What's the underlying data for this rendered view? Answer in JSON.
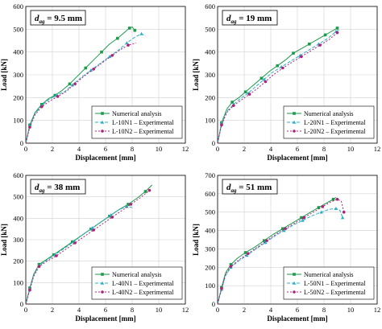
{
  "colors": {
    "numerical": "#1a9a4a",
    "exp1": "#2bb0c8",
    "exp2": "#b0207a",
    "grid": "#d0d0d0"
  },
  "chart_data": [
    {
      "type": "line",
      "title_main": "d",
      "title_sub": "ag",
      "title_rest": " = 9.5 mm",
      "xlabel": "Displacement [mm]",
      "ylabel": "Load [kN]",
      "xlim": [
        0,
        12
      ],
      "ylim": [
        0,
        600
      ],
      "xticks": [
        "0",
        "2",
        "4",
        "6",
        "8",
        "10",
        "12"
      ],
      "yticks": [
        "0",
        "100",
        "200",
        "300",
        "400",
        "500",
        "600"
      ],
      "grid": true,
      "legend_position": "bottom-right",
      "series": [
        {
          "name": "Numerical analysis",
          "style": "numerical",
          "x": [
            0,
            0.3,
            0.7,
            1.2,
            1.7,
            2.2,
            2.7,
            3.3,
            3.9,
            4.5,
            5.1,
            5.7,
            6.3,
            6.9,
            7.4,
            7.8,
            8.0,
            8.2
          ],
          "y": [
            0,
            80,
            135,
            170,
            195,
            210,
            230,
            260,
            295,
            330,
            365,
            400,
            435,
            460,
            485,
            505,
            510,
            495
          ]
        },
        {
          "name": "L-10N1 – Experimental",
          "style": "exp1",
          "x": [
            0,
            0.3,
            0.7,
            1.2,
            1.7,
            2.3,
            2.9,
            3.5,
            4.2,
            4.9,
            5.6,
            6.3,
            7.0,
            7.6,
            8.2,
            8.7,
            9.0
          ],
          "y": [
            0,
            75,
            130,
            165,
            190,
            210,
            225,
            255,
            290,
            320,
            350,
            380,
            410,
            440,
            465,
            480,
            470
          ]
        },
        {
          "name": "L-10N2 – Experimental",
          "style": "exp2",
          "x": [
            0,
            0.3,
            0.7,
            1.2,
            1.8,
            2.4,
            3.0,
            3.7,
            4.4,
            5.1,
            5.8,
            6.5,
            7.1,
            7.7,
            8.3
          ],
          "y": [
            0,
            70,
            125,
            160,
            185,
            205,
            225,
            260,
            295,
            325,
            355,
            385,
            410,
            430,
            440
          ]
        }
      ]
    },
    {
      "type": "line",
      "title_main": "d",
      "title_sub": "ag",
      "title_rest": " = 19 mm",
      "xlabel": "Displacement [mm]",
      "ylabel": "Load [kN]",
      "xlim": [
        0,
        12
      ],
      "ylim": [
        0,
        600
      ],
      "xticks": [
        "0",
        "2",
        "4",
        "6",
        "8",
        "10",
        "12"
      ],
      "yticks": [
        "0",
        "100",
        "200",
        "300",
        "400",
        "500",
        "600"
      ],
      "grid": true,
      "legend_position": "bottom-right",
      "series": [
        {
          "name": "Numerical analysis",
          "style": "numerical",
          "x": [
            0,
            0.3,
            0.7,
            1.1,
            1.6,
            2.1,
            2.7,
            3.3,
            3.9,
            4.5,
            5.1,
            5.7,
            6.3,
            6.9,
            7.5,
            8.1,
            8.7,
            9.0
          ],
          "y": [
            0,
            90,
            150,
            180,
            200,
            225,
            255,
            285,
            315,
            340,
            365,
            395,
            415,
            435,
            455,
            475,
            495,
            505
          ]
        },
        {
          "name": "L-20N1 – Experimental",
          "style": "exp1",
          "x": [
            0,
            0.3,
            0.7,
            1.2,
            1.7,
            2.3,
            2.9,
            3.5,
            4.1,
            4.8,
            5.5,
            6.2,
            6.9,
            7.6,
            8.3,
            8.9,
            9.2
          ],
          "y": [
            0,
            85,
            140,
            170,
            195,
            220,
            250,
            280,
            310,
            335,
            360,
            385,
            410,
            435,
            460,
            490,
            500
          ]
        },
        {
          "name": "L-20N2 – Experimental",
          "style": "exp2",
          "x": [
            0,
            0.3,
            0.7,
            1.2,
            1.8,
            2.4,
            3.0,
            3.6,
            4.2,
            4.9,
            5.6,
            6.3,
            7.0,
            7.7,
            8.4,
            9.0
          ],
          "y": [
            0,
            80,
            135,
            165,
            190,
            215,
            240,
            270,
            300,
            330,
            355,
            380,
            405,
            430,
            455,
            485
          ]
        }
      ]
    },
    {
      "type": "line",
      "title_main": "d",
      "title_sub": "ag",
      "title_rest": " = 38 mm",
      "xlabel": "Displacement [mm]",
      "ylabel": "Load [kN]",
      "xlim": [
        0,
        12
      ],
      "ylim": [
        0,
        600
      ],
      "xticks": [
        "0",
        "2",
        "4",
        "6",
        "8",
        "10",
        "12"
      ],
      "yticks": [
        "0",
        "100",
        "200",
        "300",
        "400",
        "500",
        "600"
      ],
      "grid": true,
      "legend_position": "bottom-right",
      "series": [
        {
          "name": "Numerical analysis",
          "style": "numerical",
          "x": [
            0,
            0.3,
            0.6,
            1.0,
            1.5,
            2.1,
            2.8,
            3.5,
            4.2,
            4.9,
            5.6,
            6.3,
            7.0,
            7.7,
            8.4,
            9.0,
            9.5
          ],
          "y": [
            0,
            75,
            140,
            185,
            205,
            230,
            260,
            290,
            320,
            350,
            380,
            410,
            440,
            465,
            495,
            525,
            555
          ]
        },
        {
          "name": "L-40N1 – Experimental",
          "style": "exp1",
          "x": [
            0,
            0.3,
            0.6,
            1.0,
            1.6,
            2.2,
            2.9,
            3.6,
            4.3,
            5.0,
            5.7,
            6.4,
            7.0,
            7.6,
            8.0
          ],
          "y": [
            0,
            70,
            135,
            180,
            205,
            230,
            260,
            290,
            325,
            355,
            385,
            415,
            440,
            455,
            450
          ]
        },
        {
          "name": "L-40N2 – Experimental",
          "style": "exp2",
          "x": [
            0,
            0.3,
            0.6,
            1.0,
            1.6,
            2.3,
            3.0,
            3.7,
            4.4,
            5.1,
            5.8,
            6.5,
            7.2,
            7.9,
            8.6,
            9.3
          ],
          "y": [
            0,
            65,
            130,
            175,
            200,
            225,
            255,
            285,
            315,
            345,
            375,
            405,
            435,
            465,
            495,
            530
          ]
        }
      ]
    },
    {
      "type": "line",
      "title_main": "d",
      "title_sub": "ag",
      "title_rest": " = 51 mm",
      "xlabel": "Displacement [mm]",
      "ylabel": "Load [kN]",
      "xlim": [
        0,
        12
      ],
      "ylim": [
        0,
        700
      ],
      "xticks": [
        "0",
        "2",
        "4",
        "6",
        "8",
        "10",
        "12"
      ],
      "yticks": [
        "0",
        "100",
        "200",
        "300",
        "400",
        "500",
        "600",
        "700"
      ],
      "grid": true,
      "legend_position": "bottom-right",
      "series": [
        {
          "name": "Numerical analysis",
          "style": "numerical",
          "x": [
            0,
            0.3,
            0.6,
            1.0,
            1.5,
            2.1,
            2.8,
            3.5,
            4.2,
            4.9,
            5.6,
            6.3,
            7.0,
            7.6,
            8.2,
            8.7,
            8.9
          ],
          "y": [
            0,
            90,
            170,
            215,
            250,
            280,
            310,
            345,
            380,
            410,
            440,
            470,
            500,
            525,
            550,
            570,
            580
          ]
        },
        {
          "name": "L-50N1 – Experimental",
          "style": "exp1",
          "x": [
            0,
            0.3,
            0.6,
            1.0,
            1.6,
            2.2,
            2.9,
            3.6,
            4.3,
            5.0,
            5.7,
            6.4,
            7.1,
            7.8,
            8.4,
            8.9,
            9.2,
            9.4
          ],
          "y": [
            0,
            80,
            155,
            200,
            235,
            265,
            300,
            335,
            370,
            400,
            430,
            455,
            480,
            500,
            515,
            520,
            510,
            470
          ]
        },
        {
          "name": "L-50N2 – Experimental",
          "style": "exp2",
          "x": [
            0,
            0.3,
            0.6,
            1.0,
            1.6,
            2.3,
            3.0,
            3.7,
            4.4,
            5.1,
            5.8,
            6.5,
            7.2,
            7.9,
            8.5,
            9.0,
            9.3,
            9.5
          ],
          "y": [
            0,
            85,
            160,
            205,
            240,
            275,
            310,
            345,
            380,
            410,
            440,
            470,
            500,
            530,
            555,
            570,
            560,
            500
          ]
        }
      ]
    }
  ]
}
